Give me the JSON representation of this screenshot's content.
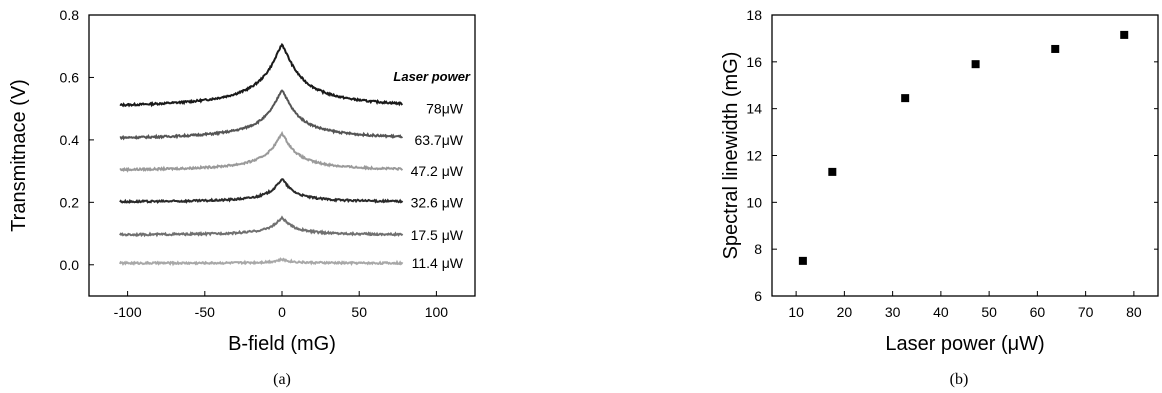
{
  "chart_data": [
    {
      "type": "line",
      "caption": "(a)",
      "xlabel": "B-field (mG)",
      "ylabel": "Transmitnace (V)",
      "xlim": [
        -125,
        125
      ],
      "ylim": [
        -0.1,
        0.8
      ],
      "xticks": [
        -100,
        -50,
        0,
        50,
        100
      ],
      "yticks": [
        0.0,
        0.2,
        0.4,
        0.6,
        0.8
      ],
      "x_range_data": [
        -105,
        78
      ],
      "legend_title": "Laser power",
      "series": [
        {
          "name": "78μW",
          "offset": 0.5,
          "peak": 0.205,
          "hwhm": 12,
          "color": "#1a1a1a"
        },
        {
          "name": "63.7μW",
          "offset": 0.4,
          "peak": 0.16,
          "hwhm": 10,
          "color": "#555555"
        },
        {
          "name": "47.2 μW",
          "offset": 0.3,
          "peak": 0.12,
          "hwhm": 9,
          "color": "#9a9a9a"
        },
        {
          "name": "32.6 μW",
          "offset": 0.2,
          "peak": 0.075,
          "hwhm": 7,
          "color": "#2a2a2a"
        },
        {
          "name": "17.5 μW",
          "offset": 0.095,
          "peak": 0.055,
          "hwhm": 7,
          "color": "#707070"
        },
        {
          "name": "11.4 μW",
          "offset": 0.005,
          "peak": 0.012,
          "hwhm": 6,
          "color": "#a8a8a8"
        }
      ]
    },
    {
      "type": "scatter",
      "caption": "(b)",
      "xlabel": "Laser power (μW)",
      "ylabel": "Spectral linewidth (mG)",
      "xlim": [
        5,
        85
      ],
      "ylim": [
        6,
        18
      ],
      "xticks": [
        10,
        20,
        30,
        40,
        50,
        60,
        70,
        80
      ],
      "yticks": [
        6,
        8,
        10,
        12,
        14,
        16,
        18
      ],
      "x": [
        11.4,
        17.5,
        32.6,
        47.2,
        63.7,
        78
      ],
      "y": [
        7.5,
        11.3,
        14.45,
        15.9,
        16.55,
        17.15
      ],
      "marker": "square"
    }
  ]
}
